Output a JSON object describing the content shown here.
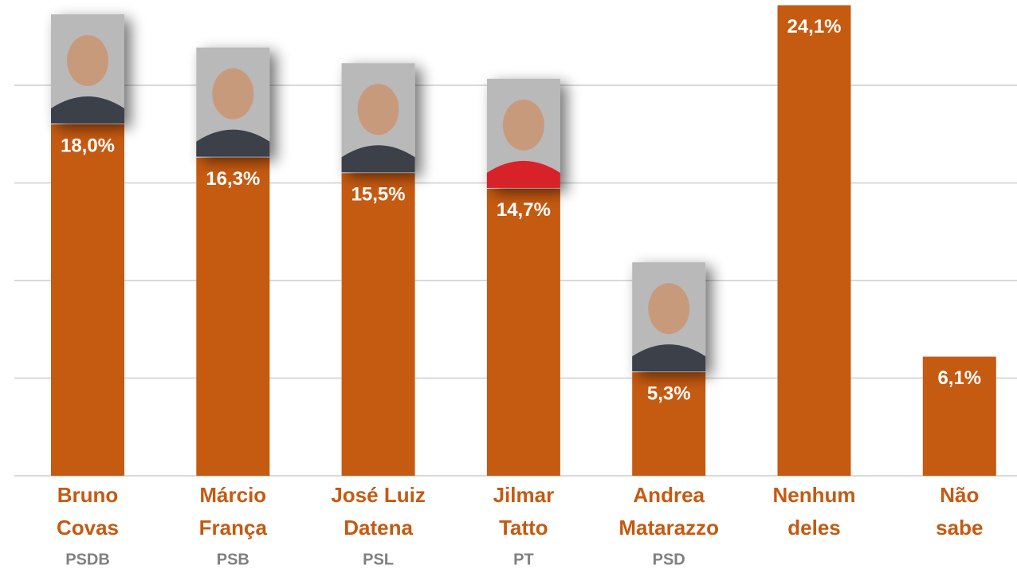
{
  "chart_data": {
    "type": "bar",
    "categories": [
      [
        "Bruno",
        "Covas"
      ],
      [
        "Márcio",
        "França"
      ],
      [
        "José Luiz",
        "Datena"
      ],
      [
        "Jilmar",
        "Tatto"
      ],
      [
        "Andrea",
        "Matarazzo"
      ],
      [
        "Nenhum",
        "deles"
      ],
      [
        "Não",
        "sabe"
      ]
    ],
    "parties": [
      "PSDB",
      "PSB",
      "PSL",
      "PT",
      "PSD",
      null,
      null
    ],
    "values": [
      18.0,
      16.3,
      15.5,
      14.7,
      5.3,
      24.1,
      6.1
    ],
    "value_labels": [
      "18,0%",
      "16,3%",
      "15,5%",
      "14,7%",
      "5,3%",
      "24,1%",
      "6,1%"
    ],
    "photos": [
      true,
      true,
      true,
      true,
      true,
      false,
      false
    ],
    "color": "#c55a11",
    "ylim": [
      0,
      24
    ],
    "yticks": [
      0,
      5,
      10,
      15,
      20
    ],
    "grid": true
  }
}
